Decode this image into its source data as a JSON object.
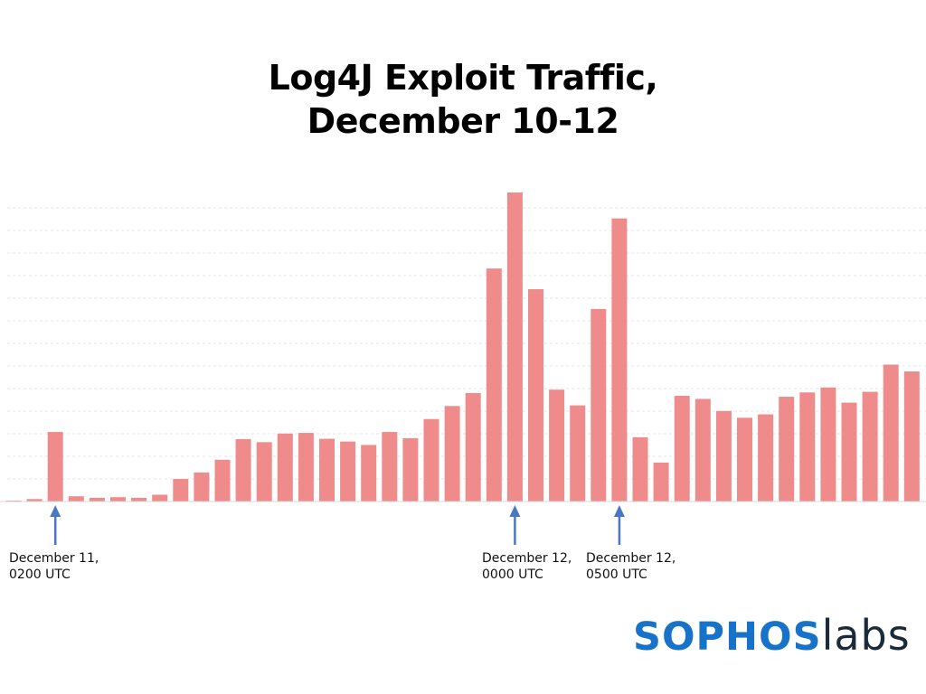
{
  "title_line1": "Log4J Exploit Traffic,",
  "title_line2": "December 10-12",
  "colors": {
    "bar": "#ef8b8a",
    "arrow": "#4a77c4",
    "grid": "#e6e6e6",
    "axis": "#d9d9d9"
  },
  "annotations": [
    {
      "line1": "December 11,",
      "line2": "0200 UTC",
      "bar_index": 2
    },
    {
      "line1": "December 12,",
      "line2": "0000 UTC",
      "bar_index": 24
    },
    {
      "line1": "December 12,",
      "line2": "0500 UTC",
      "bar_index": 29
    }
  ],
  "logo": {
    "part1": "SOPHOS",
    "part2": "labs"
  },
  "chart_data": {
    "type": "bar",
    "title": "Log4J Exploit Traffic, December 10-12",
    "xlabel": "",
    "ylabel": "",
    "ylim": [
      0,
      100
    ],
    "grid": true,
    "values": [
      0.3,
      0.8,
      22.5,
      1.7,
      1.2,
      1.4,
      1.2,
      2.2,
      7.3,
      9.4,
      13.5,
      20.2,
      19.2,
      22.0,
      22.2,
      20.3,
      19.4,
      18.3,
      22.5,
      20.5,
      26.7,
      30.9,
      35.1,
      75.4,
      100.0,
      68.7,
      36.2,
      31.1,
      62.3,
      91.6,
      20.8,
      12.6,
      34.2,
      33.2,
      29.3,
      27.1,
      28.2,
      33.9,
      35.3,
      36.9,
      32.0,
      35.5,
      44.3,
      42.1
    ]
  }
}
